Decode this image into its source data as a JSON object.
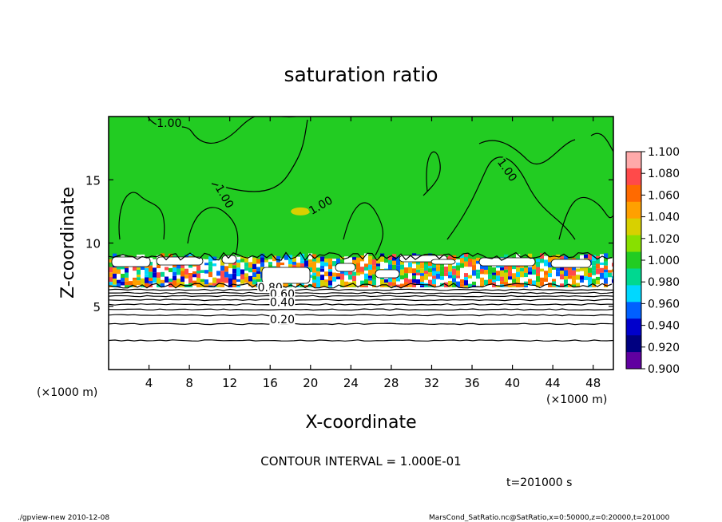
{
  "chart_data": {
    "type": "heatmap",
    "title": "saturation ratio",
    "xlabel": "X-coordinate",
    "ylabel": "Z-coordinate",
    "x_unit_left": "(×1000 m)",
    "x_unit_right": "(×1000 m)",
    "xlim": [
      0,
      50
    ],
    "ylim": [
      0,
      20
    ],
    "x_ticks": [
      4,
      8,
      12,
      16,
      20,
      24,
      28,
      32,
      36,
      40,
      44,
      48
    ],
    "y_ticks": [
      5,
      10,
      15
    ],
    "colorbar": {
      "levels": [
        "1.100",
        "1.080",
        "1.060",
        "1.040",
        "1.020",
        "1.000",
        "0.980",
        "0.960",
        "0.940",
        "0.920",
        "0.900"
      ],
      "colors": [
        "#ffaaaa",
        "#ff4a4a",
        "#ff6a00",
        "#ffa000",
        "#d8d000",
        "#88e000",
        "#22cc22",
        "#00d890",
        "#00d8ff",
        "#0060ff",
        "#0000cc",
        "#000080",
        "#6000a0"
      ]
    },
    "contour_labels": [
      {
        "text": "1.00",
        "x": 6,
        "z": 19.3,
        "angle": 0
      },
      {
        "text": "1.00",
        "x": 11.5,
        "z": 13.5,
        "angle": 60
      },
      {
        "text": "1.00",
        "x": 21,
        "z": 12.8,
        "angle": -30
      },
      {
        "text": "1.00",
        "x": 39.5,
        "z": 15.6,
        "angle": 55
      },
      {
        "text": "0.80",
        "x": 16,
        "z": 6.3,
        "angle": 0
      },
      {
        "text": "0.60",
        "x": 17.2,
        "z": 5.8,
        "angle": 0
      },
      {
        "text": "0.40",
        "x": 17.2,
        "z": 5.15,
        "angle": 0
      },
      {
        "text": "0.20",
        "x": 17.2,
        "z": 3.8,
        "angle": 0
      }
    ],
    "contour_lines_z": [
      2.3,
      3.6,
      4.3,
      4.75,
      5.15,
      5.5,
      5.8,
      6.05,
      6.3
    ],
    "cloud_layer": {
      "z_bottom": 6.5,
      "z_top": 9.2
    },
    "supersaturated_patch": {
      "x": 19,
      "z": 12.5
    }
  },
  "annotations": {
    "contour_interval": "CONTOUR INTERVAL = 1.000E-01",
    "time": "t=201000 s",
    "footer_left": "./gpview-new  2010-12-08",
    "footer_right": "MarsCond_SatRatio.nc@SatRatio,x=0:50000,z=0:20000,t=201000"
  }
}
